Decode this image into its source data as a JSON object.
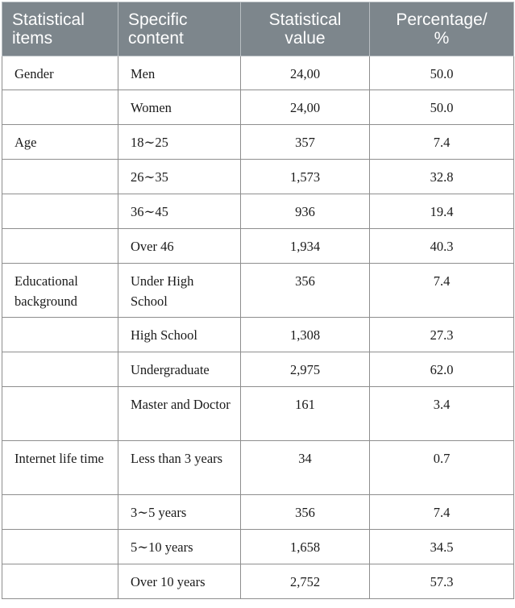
{
  "headers": [
    "Statistical items",
    "Specific content",
    "Statistical value",
    "Percentage/%"
  ],
  "header_lines": {
    "col1": [
      "Statistical",
      "items"
    ],
    "col2": [
      "Specific",
      "content"
    ],
    "col3": [
      "Statistical",
      "value"
    ],
    "col4": [
      "Percentage/",
      "%"
    ]
  },
  "rows": [
    {
      "item": "Gender",
      "content": "Men",
      "value": "24,00",
      "percent": "50.0"
    },
    {
      "item": "",
      "content": "Women",
      "value": "24,00",
      "percent": "50.0"
    },
    {
      "item": "Age",
      "content": "18∼25",
      "value": "357",
      "percent": "7.4"
    },
    {
      "item": "",
      "content": "26∼35",
      "value": "1,573",
      "percent": "32.8"
    },
    {
      "item": "",
      "content": "36∼45",
      "value": "936",
      "percent": "19.4"
    },
    {
      "item": "",
      "content": "Over 46",
      "value": "1,934",
      "percent": "40.3"
    },
    {
      "item": "Educational background",
      "content": "Under High School",
      "value": "356",
      "percent": "7.4"
    },
    {
      "item": "",
      "content": "High School",
      "value": "1,308",
      "percent": "27.3"
    },
    {
      "item": "",
      "content": "Undergraduate",
      "value": "2,975",
      "percent": "62.0"
    },
    {
      "item": "",
      "content": "Master and Doctor",
      "value": "161",
      "percent": "3.4"
    },
    {
      "item": "Internet life time",
      "content": "Less than 3 years",
      "value": "34",
      "percent": "0.7"
    },
    {
      "item": "",
      "content": "3∼5 years",
      "value": "356",
      "percent": "7.4"
    },
    {
      "item": "",
      "content": "5∼10 years",
      "value": "1,658",
      "percent": "34.5"
    },
    {
      "item": "",
      "content": "Over 10 years",
      "value": "2,752",
      "percent": "57.3"
    }
  ]
}
